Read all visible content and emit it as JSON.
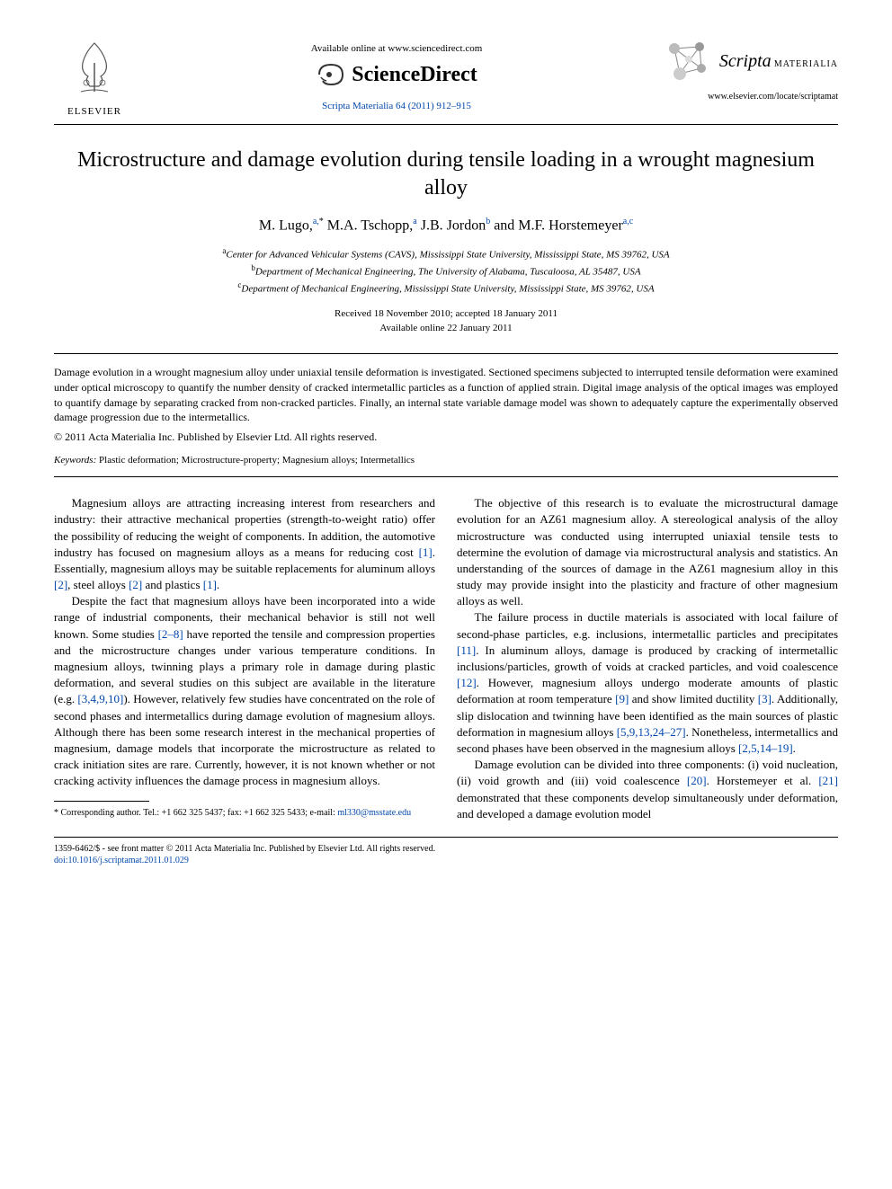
{
  "header": {
    "elsevier_label": "ELSEVIER",
    "available_online": "Available online at www.sciencedirect.com",
    "sciencedirect": "ScienceDirect",
    "journal_ref": "Scripta Materialia 64 (2011) 912–915",
    "scripta_title": "Scripta",
    "scripta_sub": "MATERIALIA",
    "locate_url": "www.elsevier.com/locate/scriptamat"
  },
  "article": {
    "title": "Microstructure and damage evolution during tensile loading in a wrought magnesium alloy",
    "authors_html": "M. Lugo,<sup>a,</sup><sup class=\"star\">*</sup> M.A. Tschopp,<sup>a</sup> J.B. Jordon<sup>b</sup> and M.F. Horstemeyer<sup>a,c</sup>",
    "affiliations": {
      "a": "Center for Advanced Vehicular Systems (CAVS), Mississippi State University, Mississippi State, MS 39762, USA",
      "b": "Department of Mechanical Engineering, The University of Alabama, Tuscaloosa, AL 35487, USA",
      "c": "Department of Mechanical Engineering, Mississippi State University, Mississippi State, MS 39762, USA"
    },
    "received": "Received 18 November 2010; accepted 18 January 2011",
    "available": "Available online 22 January 2011",
    "abstract": "Damage evolution in a wrought magnesium alloy under uniaxial tensile deformation is investigated. Sectioned specimens subjected to interrupted tensile deformation were examined under optical microscopy to quantify the number density of cracked intermetallic particles as a function of applied strain. Digital image analysis of the optical images was employed to quantify damage by separating cracked from non-cracked particles. Finally, an internal state variable damage model was shown to adequately capture the experimentally observed damage progression due to the intermetallics.",
    "copyright": "© 2011 Acta Materialia Inc. Published by Elsevier Ltd. All rights reserved.",
    "keywords_label": "Keywords:",
    "keywords": "Plastic deformation; Microstructure-property; Magnesium alloys; Intermetallics"
  },
  "body": {
    "p1": "Magnesium alloys are attracting increasing interest from researchers and industry: their attractive mechanical properties (strength-to-weight ratio) offer the possibility of reducing the weight of components. In addition, the automotive industry has focused on magnesium alloys as a means for reducing cost [1]. Essentially, magnesium alloys may be suitable replacements for aluminum alloys [2], steel alloys [2] and plastics [1].",
    "p2": "Despite the fact that magnesium alloys have been incorporated into a wide range of industrial components, their mechanical behavior is still not well known. Some studies [2–8] have reported the tensile and compression properties and the microstructure changes under various temperature conditions. In magnesium alloys, twinning plays a primary role in damage during plastic deformation, and several studies on this subject are available in the literature (e.g. [3,4,9,10]). However, relatively few studies have concentrated on the role of second phases and intermetallics during damage evolution of magnesium alloys. Although there has been some research interest in the mechanical properties of magnesium, damage models that incorporate the microstructure as related to crack initiation sites are rare. Currently, however, it is not known whether or not cracking activity influences the damage process in magnesium alloys.",
    "p3": "The objective of this research is to evaluate the microstructural damage evolution for an AZ61 magnesium alloy. A stereological analysis of the alloy microstructure was conducted using interrupted uniaxial tensile tests to determine the evolution of damage via microstructural analysis and statistics. An understanding of the sources of damage in the AZ61 magnesium alloy in this study may provide insight into the plasticity and fracture of other magnesium alloys as well.",
    "p4": "The failure process in ductile materials is associated with local failure of second-phase particles, e.g. inclusions, intermetallic particles and precipitates [11]. In aluminum alloys, damage is produced by cracking of intermetallic inclusions/particles, growth of voids at cracked particles, and void coalescence [12]. However, magnesium alloys undergo moderate amounts of plastic deformation at room temperature [9] and show limited ductility [3]. Additionally, slip dislocation and twinning have been identified as the main sources of plastic deformation in magnesium alloys [5,9,13,24–27]. Nonetheless, intermetallics and second phases have been observed in the magnesium alloys [2,5,14–19].",
    "p5": "Damage evolution can be divided into three components: (i) void nucleation, (ii) void growth and (iii) void coalescence [20]. Horstemeyer et al. [21] demonstrated that these components develop simultaneously under deformation, and developed a damage evolution model"
  },
  "footnote": {
    "corr": "* Corresponding author. Tel.: +1 662 325 5437; fax: +1 662 325 5433; e-mail: ",
    "email": "ml330@msstate.edu"
  },
  "footer": {
    "line1": "1359-6462/$ - see front matter © 2011 Acta Materialia Inc. Published by Elsevier Ltd. All rights reserved.",
    "doi": "doi:10.1016/j.scriptamat.2011.01.029"
  },
  "colors": {
    "link": "#0047ab",
    "text": "#000000",
    "background": "#ffffff"
  }
}
